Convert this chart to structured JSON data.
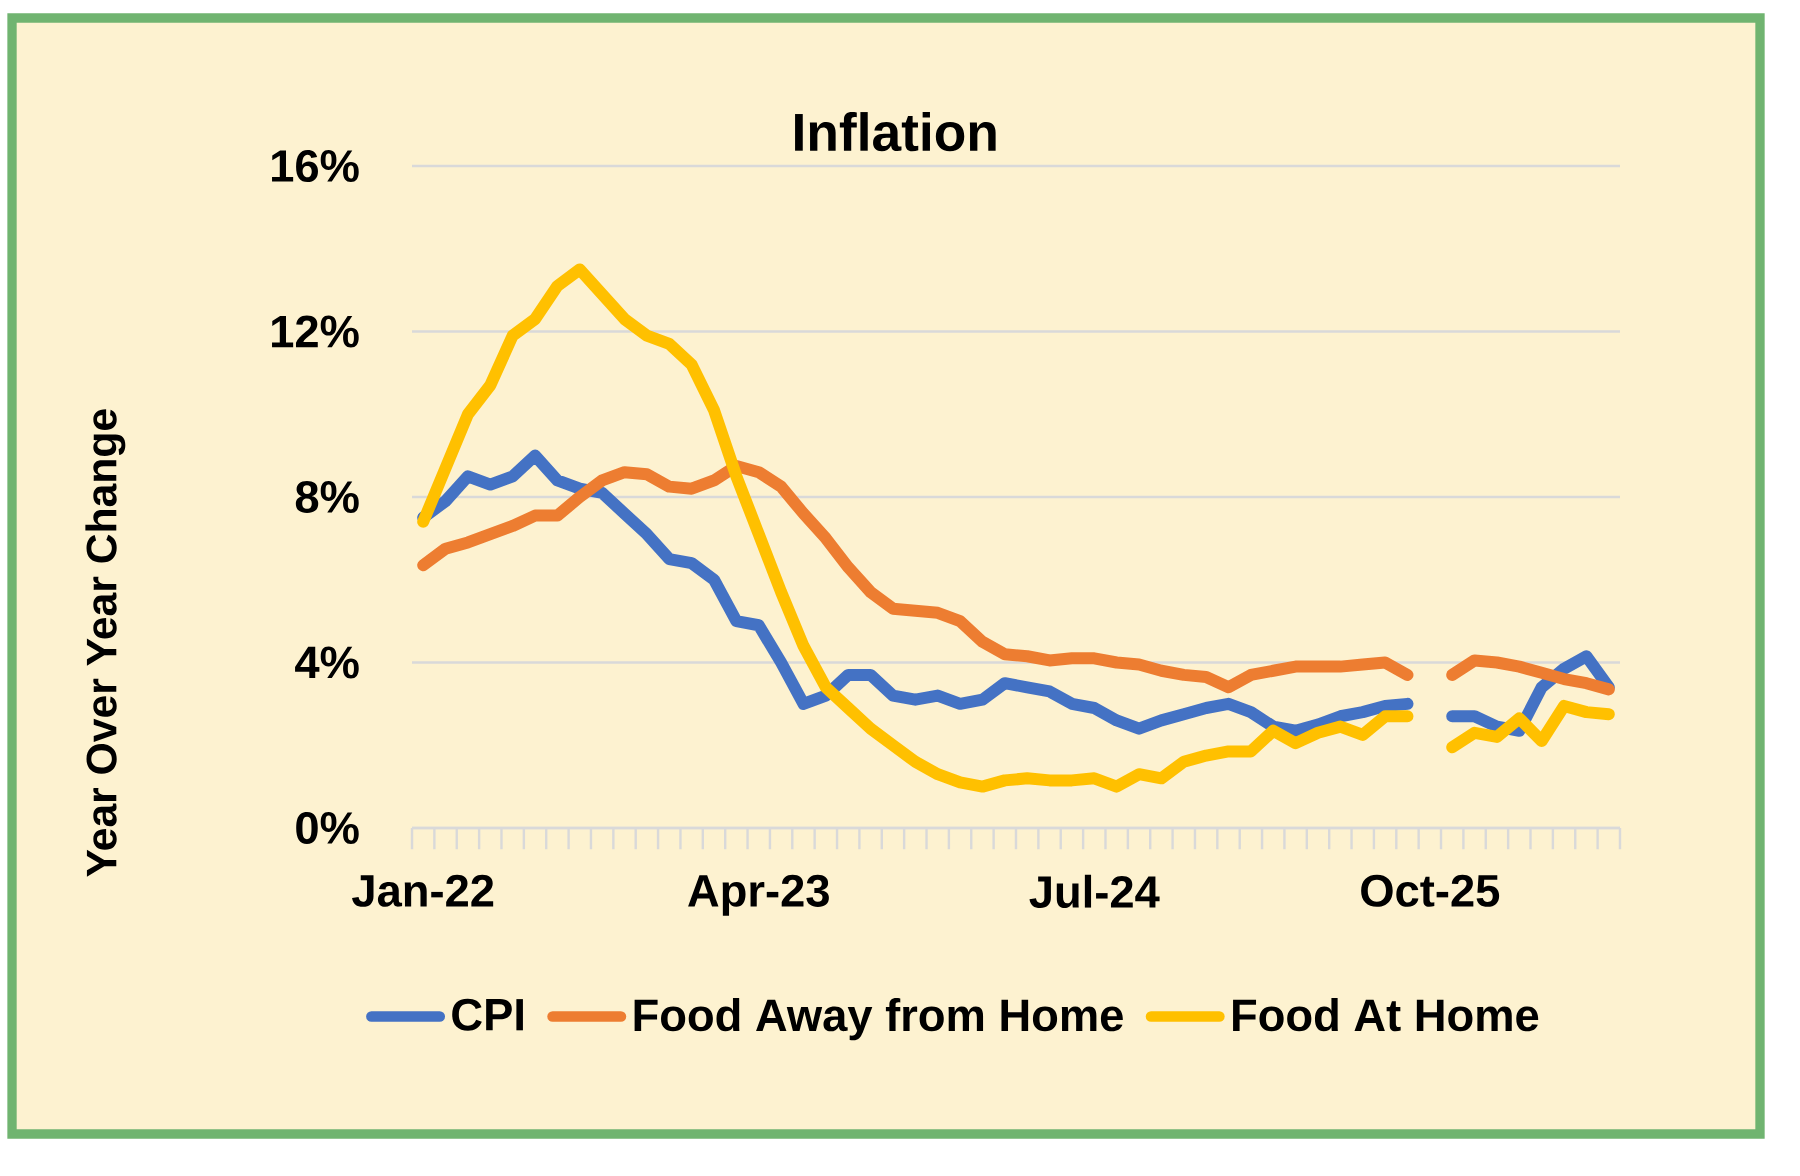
{
  "chart_data": {
    "type": "line",
    "title": "Inflation",
    "ylabel": "Year Over Year Change",
    "categories": [
      "Jan-22",
      null,
      null,
      null,
      null,
      null,
      null,
      null,
      null,
      null,
      null,
      null,
      null,
      null,
      null,
      "Apr-23",
      null,
      null,
      null,
      null,
      null,
      null,
      null,
      null,
      null,
      null,
      null,
      null,
      null,
      null,
      "Jul-24",
      null,
      null,
      null,
      null,
      null,
      null,
      null,
      null,
      null,
      null,
      null,
      null,
      null,
      null,
      "Oct-25",
      null,
      null,
      null,
      null,
      null,
      null,
      null,
      null
    ],
    "series": [
      {
        "name": "CPI",
        "color": "#4472c4",
        "values": [
          7.5,
          7.9,
          8.5,
          8.3,
          8.5,
          9.0,
          8.4,
          8.2,
          8.1,
          7.6,
          7.1,
          6.5,
          6.4,
          6.0,
          5.0,
          4.9,
          4.0,
          3.0,
          3.2,
          3.7,
          3.7,
          3.2,
          3.1,
          3.2,
          3.0,
          3.1,
          3.5,
          3.4,
          3.3,
          3.0,
          2.9,
          2.6,
          2.4,
          2.6,
          2.75,
          2.9,
          3.0,
          2.8,
          2.45,
          2.35,
          2.5,
          2.7,
          2.8,
          2.95,
          3.0,
          null,
          2.7,
          2.7,
          2.45,
          2.35,
          3.4,
          3.85,
          4.15,
          3.4
        ]
      },
      {
        "name": "Food Away from Home",
        "color": "#ed7d31",
        "values": [
          6.35,
          6.75,
          6.9,
          7.1,
          7.3,
          7.55,
          7.55,
          8.0,
          8.4,
          8.6,
          8.55,
          8.25,
          8.2,
          8.4,
          8.75,
          8.6,
          8.25,
          7.6,
          7.0,
          6.3,
          5.7,
          5.3,
          5.25,
          5.2,
          5.0,
          4.5,
          4.2,
          4.15,
          4.05,
          4.1,
          4.1,
          4.0,
          3.95,
          3.8,
          3.7,
          3.65,
          3.4,
          3.7,
          3.8,
          3.9,
          3.9,
          3.9,
          3.95,
          4.0,
          3.7,
          null,
          3.7,
          4.05,
          4.0,
          3.9,
          3.75,
          3.6,
          3.5,
          3.35
        ]
      },
      {
        "name": "Food At Home",
        "color": "#ffc000",
        "values": [
          7.4,
          8.7,
          10.0,
          10.7,
          11.9,
          12.3,
          13.1,
          13.5,
          12.9,
          12.3,
          11.9,
          11.7,
          11.2,
          10.1,
          8.5,
          7.1,
          5.7,
          4.4,
          3.4,
          2.9,
          2.4,
          2.0,
          1.6,
          1.3,
          1.1,
          1.0,
          1.15,
          1.2,
          1.15,
          1.15,
          1.2,
          1.0,
          1.3,
          1.2,
          1.6,
          1.75,
          1.85,
          1.85,
          2.35,
          2.05,
          2.3,
          2.45,
          2.25,
          2.7,
          2.7,
          null,
          1.95,
          2.3,
          2.2,
          2.65,
          2.1,
          2.95,
          2.8,
          2.75
        ]
      }
    ],
    "ylim": [
      0,
      16
    ],
    "yticks": [
      {
        "value": 0,
        "label": "0%"
      },
      {
        "value": 4,
        "label": "4%"
      },
      {
        "value": 8,
        "label": "8%"
      },
      {
        "value": 12,
        "label": "12%"
      },
      {
        "value": 16,
        "label": "16%"
      }
    ],
    "grid": "y",
    "legend": "bottom"
  }
}
